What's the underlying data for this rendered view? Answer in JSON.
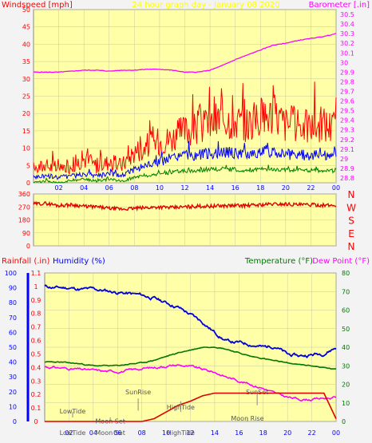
{
  "header": {
    "wind_label": "Windspeed [mph]",
    "title": "24 hour graph day - January 08 2020",
    "baro_label": "Barometer [.in]"
  },
  "panel2": {
    "compass": [
      "N",
      "W",
      "S",
      "E",
      "N"
    ]
  },
  "panel3": {
    "rain_label": "Rainfall (.in)",
    "humidity_label": "Humidity (%)",
    "temp_label": "Temperature (°F)",
    "dew_label": "Dew Point (°F)"
  },
  "colors": {
    "wind_gust": "#ff0000",
    "wind_avg": "#0000ff",
    "wind_min": "#008000",
    "barometer": "#ff00ff",
    "direction": "#e00000",
    "humidity": "#0000dd",
    "temperature": "#007700",
    "dewpoint": "#ff00ff",
    "rain": "#dd0000",
    "plot_bg": "#ffffa8"
  },
  "chart_data": [
    {
      "type": "line",
      "title": "24 hour graph day - January 08 2020",
      "x_ticks": [
        "02",
        "04",
        "06",
        "08",
        "10",
        "12",
        "14",
        "16",
        "18",
        "20",
        "22",
        "00"
      ],
      "y_left_label": "Windspeed [mph]",
      "y_left_ticks": [
        "0",
        "5",
        "10",
        "15",
        "20",
        "25",
        "30",
        "35",
        "40",
        "45",
        "50"
      ],
      "ylim_left": [
        0,
        50
      ],
      "y_right_label": "Barometer [.in]",
      "y_right_ticks": [
        "28.8",
        "28.9",
        "29",
        "29.1",
        "29.2",
        "29.3",
        "29.4",
        "29.5",
        "29.6",
        "29.7",
        "29.8",
        "29.9",
        "30",
        "30.1",
        "30.2",
        "30.3",
        "30.4",
        "30.5"
      ],
      "ylim_right": [
        28.75,
        30.55
      ],
      "grid": true,
      "x": [
        0,
        1,
        2,
        3,
        4,
        5,
        6,
        7,
        8,
        9,
        10,
        11,
        12,
        13,
        14,
        15,
        16,
        17,
        18,
        19,
        20,
        21,
        22,
        23,
        24
      ],
      "series": [
        {
          "key": "gust",
          "axis": "left",
          "values": [
            4,
            5,
            4,
            5,
            7,
            5,
            6,
            5,
            9,
            11,
            12,
            13,
            15,
            16,
            17,
            19,
            18,
            17,
            19,
            20,
            17,
            17,
            16,
            17,
            16
          ]
        },
        {
          "key": "avg",
          "axis": "left",
          "values": [
            1.5,
            2,
            1.5,
            2,
            2.5,
            2,
            2.5,
            2,
            4,
            5,
            6,
            7,
            8,
            8,
            8.5,
            9,
            8.5,
            8,
            9,
            9,
            8,
            8,
            8,
            8,
            8
          ]
        },
        {
          "key": "min",
          "axis": "left",
          "values": [
            0,
            0.5,
            0,
            0.5,
            1,
            0.5,
            1,
            0.5,
            1.5,
            2,
            2.5,
            3,
            3.5,
            3.5,
            4,
            4,
            3.8,
            3.5,
            4,
            4,
            3.6,
            3.5,
            3.5,
            3.5,
            3.5
          ]
        },
        {
          "key": "barometer",
          "axis": "right",
          "values": [
            29.9,
            29.9,
            29.9,
            29.91,
            29.92,
            29.92,
            29.91,
            29.92,
            29.92,
            29.93,
            29.93,
            29.92,
            29.9,
            29.9,
            29.92,
            29.97,
            30.03,
            30.08,
            30.13,
            30.18,
            30.2,
            30.23,
            30.25,
            30.27,
            30.3
          ]
        }
      ]
    },
    {
      "type": "scatter",
      "x_ticks": [],
      "y_ticks": [
        "0",
        "90",
        "180",
        "270",
        "360"
      ],
      "ylim": [
        0,
        360
      ],
      "y_right_labels": [
        "N",
        "W",
        "S",
        "E",
        "N"
      ],
      "x": [
        0,
        1,
        2,
        3,
        4,
        5,
        6,
        7,
        8,
        9,
        10,
        11,
        12,
        13,
        14,
        15,
        16,
        17,
        18,
        19,
        20,
        21,
        22,
        23,
        24
      ],
      "series": [
        {
          "key": "direction",
          "values": [
            290,
            295,
            280,
            285,
            275,
            270,
            260,
            255,
            260,
            265,
            270,
            265,
            270,
            275,
            275,
            278,
            280,
            280,
            285,
            290,
            290,
            285,
            285,
            282,
            280
          ]
        }
      ]
    },
    {
      "type": "line",
      "x_ticks": [
        "02",
        "04",
        "06",
        "08",
        "10",
        "12",
        "14",
        "16",
        "18",
        "20",
        "22",
        "00"
      ],
      "y_left_rain_label": "Rainfall (.in)",
      "y_left_rain_ticks": [
        "0",
        "0.1",
        "0.2",
        "0.3",
        "0.4",
        "0.5",
        "0.6",
        "0.7",
        "0.8",
        "0.9",
        "1",
        "1.1"
      ],
      "ylim_rain": [
        0,
        1.1
      ],
      "y_left_humidity_label": "Humidity (%)",
      "y_left_humidity_ticks": [
        "0",
        "10",
        "20",
        "30",
        "40",
        "50",
        "60",
        "70",
        "80",
        "90",
        "100"
      ],
      "ylim_humidity": [
        0,
        100
      ],
      "y_right_label": "Temperature (°F)",
      "y_right_label2": "Dew Point (°F)",
      "y_right_ticks": [
        "0",
        "10",
        "20",
        "30",
        "40",
        "50",
        "60",
        "70",
        "80"
      ],
      "ylim_right": [
        0,
        80
      ],
      "grid": true,
      "x": [
        0,
        1,
        2,
        3,
        4,
        5,
        6,
        7,
        8,
        9,
        10,
        11,
        12,
        13,
        14,
        15,
        16,
        17,
        18,
        19,
        20,
        21,
        22,
        23,
        24
      ],
      "series": [
        {
          "key": "humidity",
          "axis": "humidity",
          "values": [
            91,
            90,
            90,
            89,
            89,
            88,
            87,
            86,
            85,
            83,
            80,
            77,
            72,
            67,
            60,
            54,
            53,
            52,
            50,
            51,
            45,
            44,
            45,
            46,
            50
          ]
        },
        {
          "key": "temperature",
          "axis": "right",
          "values": [
            32,
            32,
            31.5,
            31,
            30,
            30,
            30,
            31,
            31.5,
            33,
            35,
            37,
            38.5,
            40,
            40.5,
            39,
            37,
            35,
            34,
            32.5,
            31.5,
            30.5,
            30,
            29,
            28
          ]
        },
        {
          "key": "dewpoint",
          "axis": "right",
          "values": [
            29.5,
            29,
            28.5,
            28,
            27.5,
            27,
            27,
            27.5,
            28.5,
            29,
            30,
            30.5,
            29.5,
            28,
            26.5,
            24,
            22,
            20,
            18,
            15,
            13,
            12,
            12,
            12.5,
            13
          ]
        },
        {
          "key": "rain",
          "axis": "rain",
          "values": [
            0,
            0,
            0,
            0,
            0,
            0,
            0,
            0,
            0,
            0.02,
            0.07,
            0.12,
            0.15,
            0.19,
            0.21,
            0.21,
            0.21,
            0.21,
            0.21,
            0.21,
            0.21,
            0.21,
            0.21,
            0.21,
            0.02
          ]
        }
      ],
      "annotations": [
        {
          "text": "LowTide",
          "x": 2.3,
          "label_y": 0.06,
          "tick_from": 0.03,
          "tick_to": 0.07
        },
        {
          "text": "Moon Set",
          "x": 5.4,
          "label_y": -0.015,
          "tick_from": 0.0,
          "tick_to": 0.03
        },
        {
          "text": "SunRise",
          "x": 7.7,
          "label_y": 0.2,
          "tick_from": 0.08,
          "tick_to": 0.17
        },
        {
          "text": "HighTide",
          "x": 11.2,
          "label_y": 0.09,
          "tick_from": 0.07,
          "tick_to": 0.15
        },
        {
          "text": "SunSet",
          "x": 17.5,
          "label_y": 0.2,
          "tick_from": 0.12,
          "tick_to": 0.21
        },
        {
          "text": "Moon Rise",
          "x": 16.7,
          "label_y": 0.005,
          "tick_from": 0.0,
          "tick_to": 0.03
        }
      ],
      "bottom_labels": [
        {
          "text": "LowTide",
          "x": 2.3
        },
        {
          "text": "Moon Set",
          "x": 5.4
        },
        {
          "text": "HighTide",
          "x": 11.2
        }
      ]
    }
  ]
}
